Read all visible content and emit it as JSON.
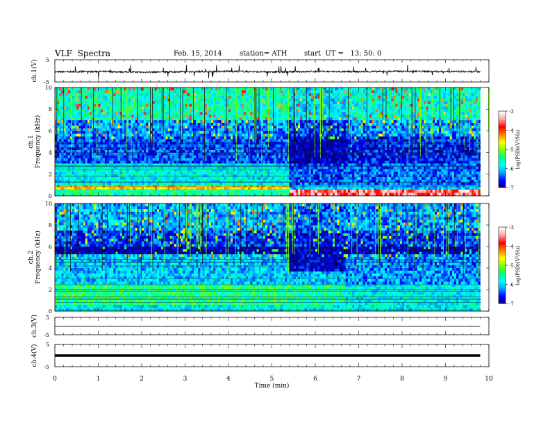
{
  "header": {
    "title": "VLF  Spectra",
    "date": "Feb. 15, 2014",
    "station": "station= ATH",
    "start": "start  UT =   13: 50: 0"
  },
  "colorbar": {
    "label": "log(PSD)(V²/Hz)",
    "ticks": [
      "-3",
      "-4",
      "-5",
      "-6",
      "-7"
    ],
    "colors": [
      "#000080",
      "#0000ff",
      "#00a0ff",
      "#00ffff",
      "#00ff80",
      "#80ff00",
      "#ffff00",
      "#ff8000",
      "#ff0000",
      "#ffa0a0",
      "#ffffff"
    ]
  },
  "chart_data": [
    {
      "type": "line",
      "name": "ch1-waveform",
      "ylabel": "ch.1(V)",
      "yticks": [
        "5",
        "-5"
      ],
      "ylim": [
        -5,
        5
      ],
      "x": [
        0,
        1,
        2,
        3,
        4,
        5,
        6,
        7,
        8,
        9,
        9.8
      ],
      "y": [
        -0.5,
        -0.3,
        -0.6,
        -0.4,
        -0.2,
        -0.5,
        -0.3,
        -0.4,
        -0.2,
        -0.3,
        -0.4
      ]
    },
    {
      "type": "heatmap",
      "name": "ch1-spectrogram",
      "ylabel_channel": "ch.1",
      "ylabel": "Frequency  (kHz)",
      "yticks": [
        "10",
        "8",
        "6",
        "4",
        "2",
        "0"
      ],
      "ylim": [
        0,
        10
      ],
      "xlim": [
        0,
        9.8
      ],
      "segments": [
        {
          "t0": 0,
          "t1": 5.4,
          "bands": [
            {
              "f0": 0,
              "f1": 0.6,
              "logpsd": -5.5
            },
            {
              "f0": 0.6,
              "f1": 1.0,
              "logpsd": -4.5
            },
            {
              "f0": 1.0,
              "f1": 3.0,
              "logpsd": -5.8
            },
            {
              "f0": 3.0,
              "f1": 5.5,
              "logpsd": -6.4
            },
            {
              "f0": 5.5,
              "f1": 7.0,
              "logpsd": -6.2
            },
            {
              "f0": 7.0,
              "f1": 10,
              "logpsd": -5.6
            }
          ]
        },
        {
          "t0": 5.4,
          "t1": 6.7,
          "bands": [
            {
              "f0": 0,
              "f1": 0.6,
              "logpsd": -3.5
            },
            {
              "f0": 0.6,
              "f1": 1.0,
              "logpsd": -6.0
            },
            {
              "f0": 1.0,
              "f1": 3.0,
              "logpsd": -6.4
            },
            {
              "f0": 3.0,
              "f1": 5.5,
              "logpsd": -6.9
            },
            {
              "f0": 5.5,
              "f1": 7.0,
              "logpsd": -6.5
            },
            {
              "f0": 7.0,
              "f1": 10,
              "logpsd": -5.9
            }
          ]
        },
        {
          "t0": 6.7,
          "t1": 9.8,
          "bands": [
            {
              "f0": 0,
              "f1": 0.6,
              "logpsd": -3.5
            },
            {
              "f0": 0.6,
              "f1": 1.0,
              "logpsd": -6.0
            },
            {
              "f0": 1.0,
              "f1": 3.0,
              "logpsd": -6.3
            },
            {
              "f0": 3.0,
              "f1": 5.5,
              "logpsd": -6.6
            },
            {
              "f0": 5.5,
              "f1": 7.0,
              "logpsd": -6.2
            },
            {
              "f0": 7.0,
              "f1": 10,
              "logpsd": -5.7
            }
          ]
        }
      ]
    },
    {
      "type": "heatmap",
      "name": "ch2-spectrogram",
      "ylabel_channel": "ch.2",
      "ylabel": "Frequency  (kHz)",
      "yticks": [
        "10",
        "8",
        "6",
        "4",
        "2",
        "0"
      ],
      "ylim": [
        0,
        10
      ],
      "xlim": [
        0,
        9.8
      ],
      "segments": [
        {
          "t0": 0,
          "t1": 5.4,
          "bands": [
            {
              "f0": 0,
              "f1": 0.6,
              "logpsd": -5.8
            },
            {
              "f0": 0.6,
              "f1": 2.5,
              "logpsd": -5.4
            },
            {
              "f0": 2.5,
              "f1": 5.3,
              "logpsd": -6.0
            },
            {
              "f0": 5.3,
              "f1": 6.0,
              "logpsd": -6.9
            },
            {
              "f0": 6.0,
              "f1": 7.5,
              "logpsd": -6.5
            },
            {
              "f0": 7.5,
              "f1": 10,
              "logpsd": -6.1
            }
          ]
        },
        {
          "t0": 5.4,
          "t1": 6.7,
          "bands": [
            {
              "f0": 0,
              "f1": 0.6,
              "logpsd": -5.8
            },
            {
              "f0": 0.6,
              "f1": 2.5,
              "logpsd": -5.5
            },
            {
              "f0": 2.5,
              "f1": 3.7,
              "logpsd": -6.0
            },
            {
              "f0": 3.7,
              "f1": 5.3,
              "logpsd": -6.8
            },
            {
              "f0": 5.3,
              "f1": 6.0,
              "logpsd": -6.9
            },
            {
              "f0": 6.0,
              "f1": 7.5,
              "logpsd": -6.6
            },
            {
              "f0": 7.5,
              "f1": 10,
              "logpsd": -6.3
            }
          ]
        },
        {
          "t0": 6.7,
          "t1": 9.8,
          "bands": [
            {
              "f0": 0,
              "f1": 0.6,
              "logpsd": -5.8
            },
            {
              "f0": 0.6,
              "f1": 2.5,
              "logpsd": -5.8
            },
            {
              "f0": 2.5,
              "f1": 5.3,
              "logpsd": -6.2
            },
            {
              "f0": 5.3,
              "f1": 6.0,
              "logpsd": -6.9
            },
            {
              "f0": 6.0,
              "f1": 7.5,
              "logpsd": -6.5
            },
            {
              "f0": 7.5,
              "f1": 10,
              "logpsd": -6.2
            }
          ]
        }
      ]
    },
    {
      "type": "line",
      "name": "ch3-waveform",
      "ylabel": "ch.3(V)",
      "yticks": [
        "5",
        "-5"
      ],
      "ylim": [
        -5,
        5
      ],
      "x": [
        0,
        9.8
      ],
      "y": [
        -0.2,
        -0.2
      ]
    },
    {
      "type": "line",
      "name": "ch4-waveform",
      "ylabel": "ch.4(V)",
      "yticks": [
        "5",
        "-5"
      ],
      "ylim": [
        -5,
        5
      ],
      "x": [
        0,
        9.8
      ],
      "y": [
        0,
        0
      ]
    }
  ],
  "time_axis": {
    "label": "Time  (min)",
    "ticks": [
      "0",
      "1",
      "2",
      "3",
      "4",
      "5",
      "6",
      "7",
      "8",
      "9",
      "10"
    ],
    "xlim": [
      0,
      10
    ]
  }
}
